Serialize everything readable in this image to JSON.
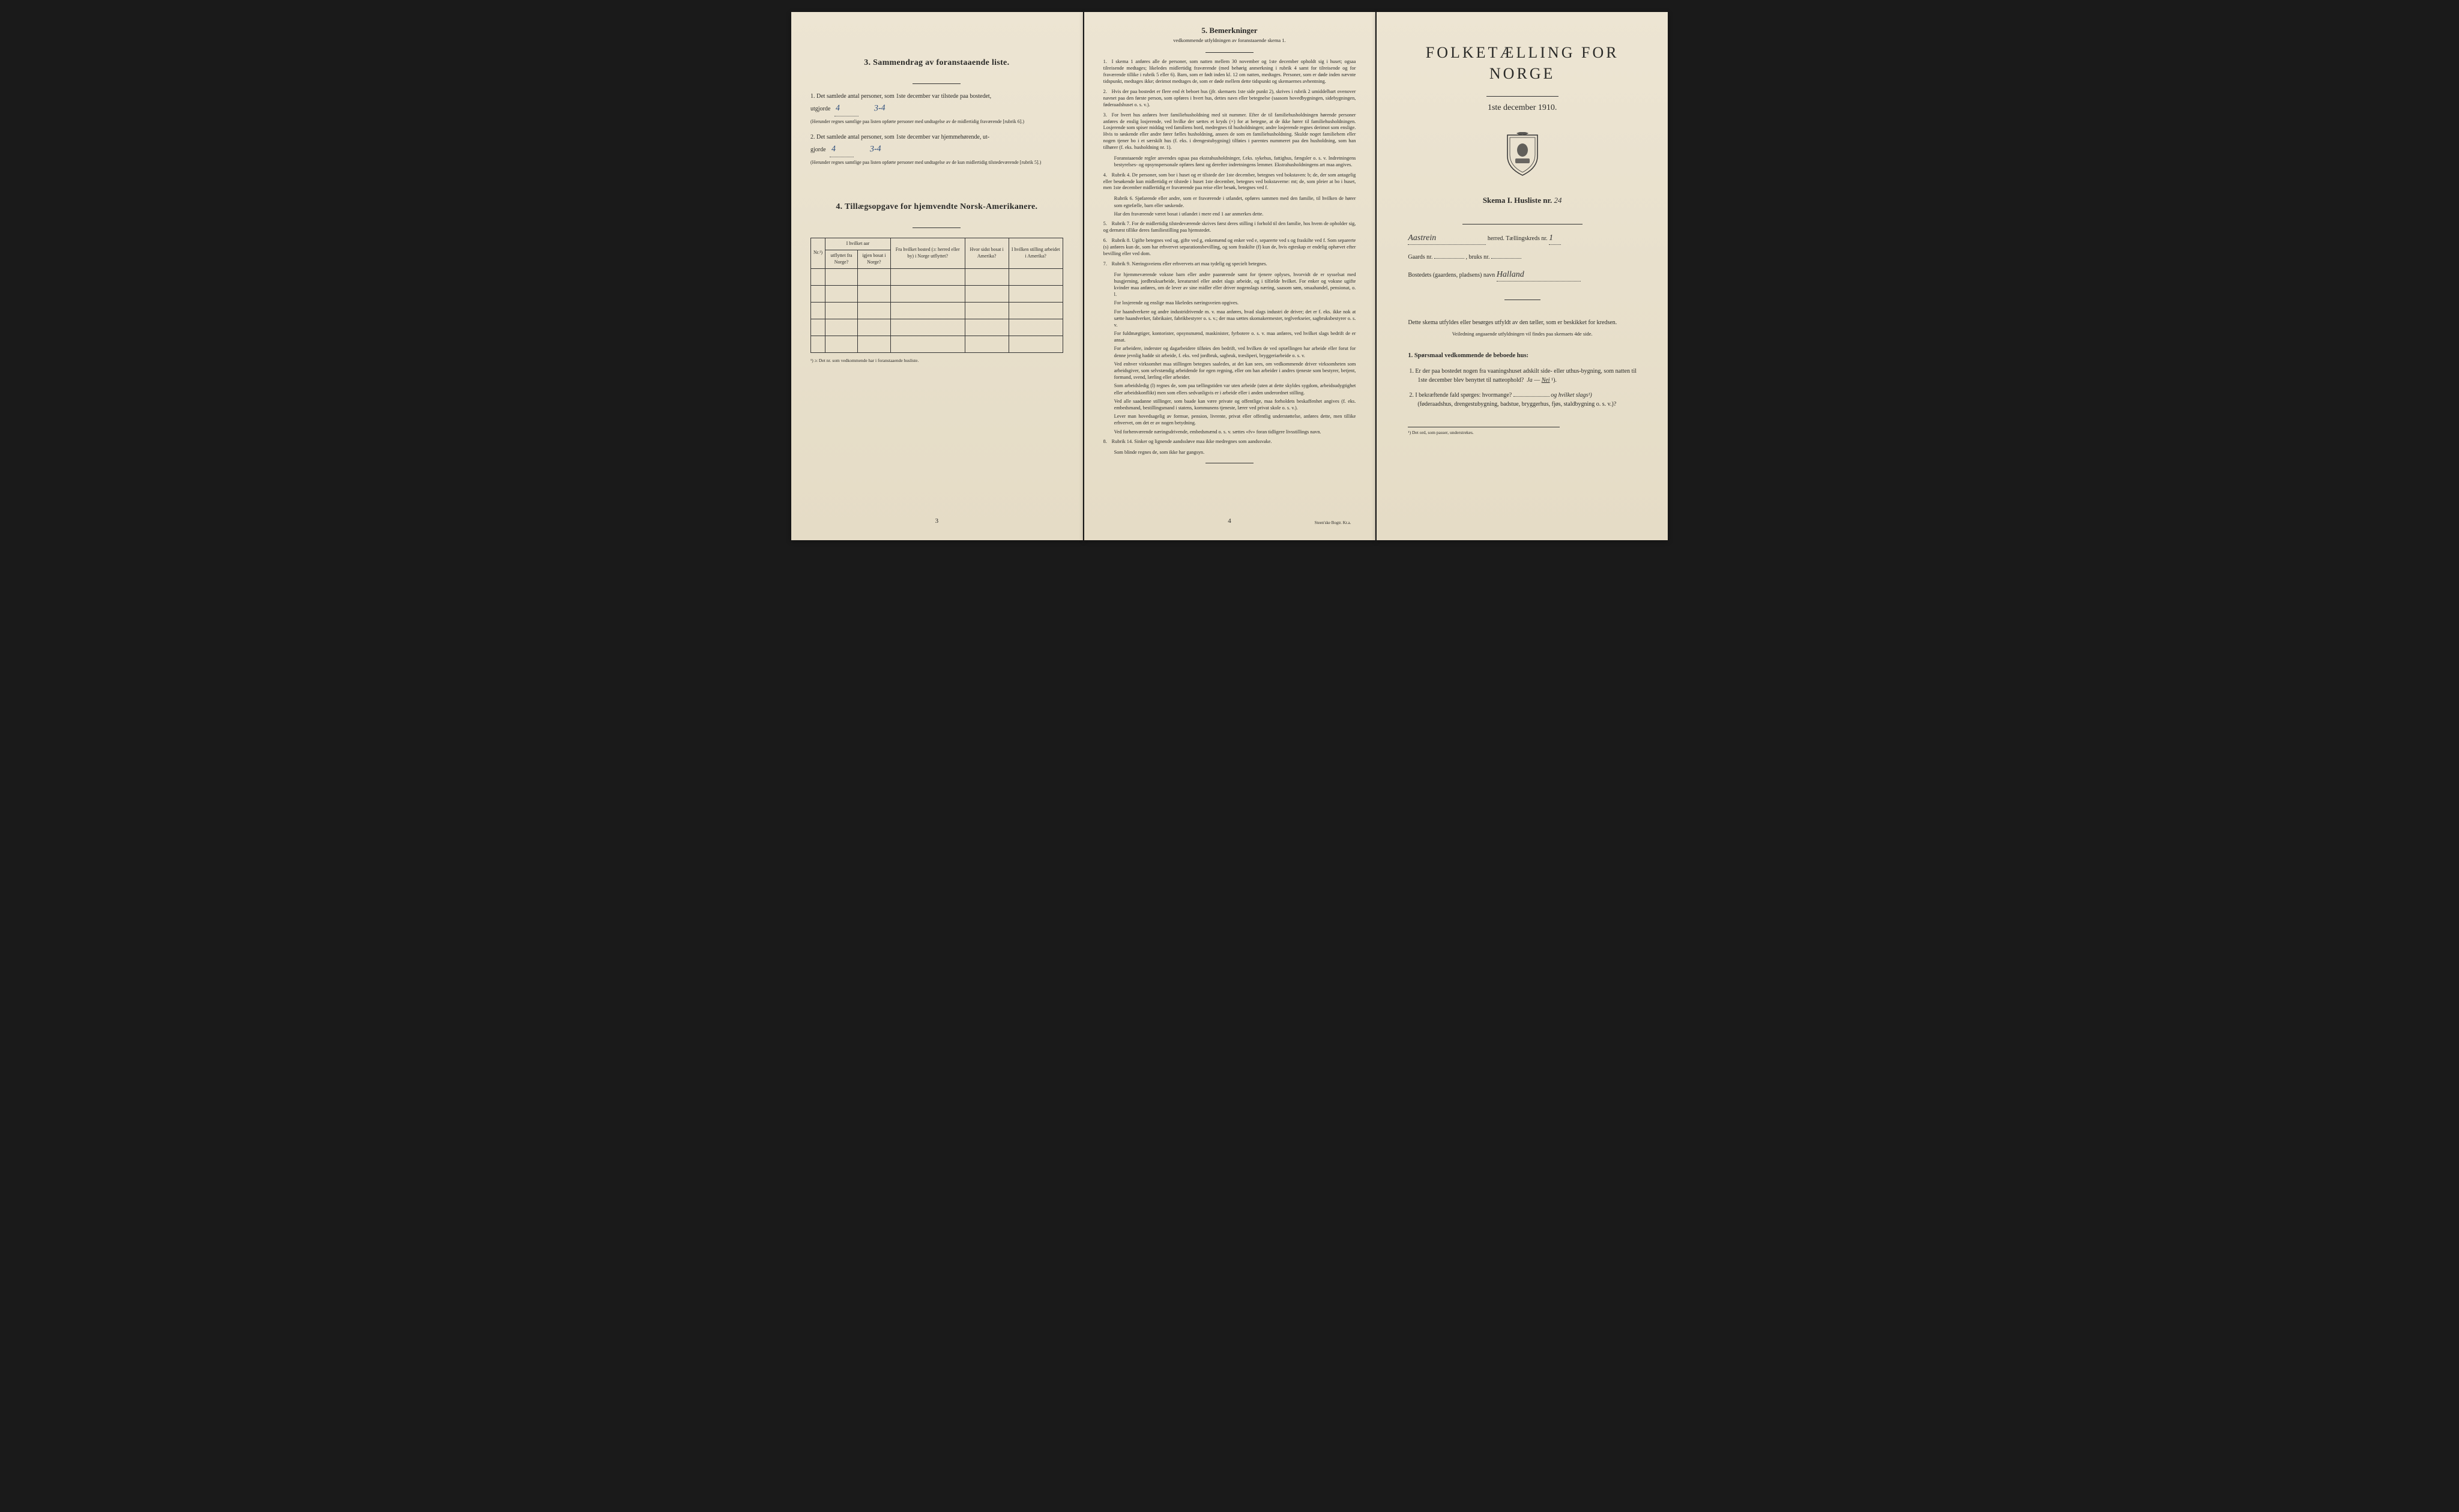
{
  "colors": {
    "paper_bg": "#ede5d3",
    "text": "#2a2a28",
    "handwriting_blue": "#2a4a7a",
    "border": "#333333"
  },
  "page1": {
    "section3_title": "3.  Sammendrag av foranstaaende liste.",
    "item1_text": "Det samlede antal personer, som 1ste december var tilstede paa bostedet,",
    "item1_prefix": "1.",
    "item1_utgjorde": "utgjorde",
    "item1_hw1": "4",
    "item1_hw2": "3-4",
    "item1_note": "(Herunder regnes samtlige paa listen opførte personer med undtagelse av de midlertidig fraværende [rubrik 6].)",
    "item2_prefix": "2.",
    "item2_text": "Det samlede antal personer, som 1ste december var hjemmehørende, ut-",
    "item2_gjorde": "gjorde",
    "item2_hw1": "4",
    "item2_hw2": "3-4",
    "item2_note": "(Herunder regnes samtlige paa listen opførte personer med undtagelse av de kun midlertidig tilstedeværende [rubrik 5].)",
    "section4_title": "4.  Tillægsopgave for hjemvendte Norsk-Amerikanere.",
    "table": {
      "col_nr": "Nr.¹)",
      "col_aar_head": "I hvilket aar",
      "col_utflyttet": "utflyttet fra Norge?",
      "col_igjen": "igjen bosat i Norge?",
      "col_bosted": "Fra hvilket bosted (ɔ: herred eller by) i Norge utflyttet?",
      "col_sidst": "Hvor sidst bosat i Amerika?",
      "col_stilling": "I hvilken stilling arbeidet i Amerika?",
      "empty_rows": 5
    },
    "footnote": "¹) ɔ: Det nr. som vedkommende har i foranstaaende husliste.",
    "page_num": "3"
  },
  "page2": {
    "title": "5.  Bemerkninger",
    "subtitle": "vedkommende utfyldningen av foranstaaende skema 1.",
    "items": [
      {
        "num": "1.",
        "text": "I skema 1 anføres alle de personer, som natten mellem 30 november og 1ste december opholdt sig i huset; ogsaa tilreisende medtages; likeledes midlertidig fraværende (med behørig anmerkning i rubrik 4 samt for tilreisende og for fraværende tillike i rubrik 5 eller 6). Barn, som er født inden kl. 12 om natten, medtages. Personer, som er døde inden nævnte tidspunkt, medtages ikke; derimot medtages de, som er døde mellem dette tidspunkt og skemaernes avhentning."
      },
      {
        "num": "2.",
        "text": "Hvis der paa bostedet er flere end ét beboet hus (jfr. skemaets 1ste side punkt 2), skrives i rubrik 2 umiddelbart ovenover navnet paa den første person, som opføres i hvert hus, dettes navn eller betegnelse (saasom hovedbygningen, sidebygningen, føderaadshuset o. s. v.)."
      },
      {
        "num": "3.",
        "text": "For hvert hus anføres hver familiehusholdning med sit nummer. Efter de til familiehusholdningen hørende personer anføres de enslig losjerende, ved hvilke der sættes et kryds (×) for at betegne, at de ikke hører til familiehusholdningen. Losjerende som spiser middag ved familiens bord, medregnes til husholdningen; andre losjerende regnes derimot som enslige. Hvis to søskende eller andre fører fælles husholdning, ansees de som en familiehusholdning. Skulde noget familiehem eller nogen tjener bo i et særskilt hus (f. eks. i drengestubygning) tilføies i parentes nummeret paa den husholdning, som han tilhører (f. eks. husholdning nr. 1).",
        "sub": "Foranstaaende regler anvendes ogsaa paa ekstrahusholdninger, f.eks. sykehus, fattighus, fængsler o. s. v. Indretningens bestyrelses- og opsynspersonale opføres først og derefter indretningens lemmer. Ekstrahusholdningens art maa angives."
      },
      {
        "num": "4.",
        "text": "Rubrik 4. De personer, som bor i huset og er tilstede der 1ste december, betegnes ved bokstaven: b; de, der som antagelig eller besøkende kun midlertidig er tilstede i huset 1ste december, betegnes ved bokstaverne: mt; de, som pleier at bo i huset, men 1ste december midlertidig er fraværende paa reise eller besøk, betegnes ved f.",
        "subs": [
          "Rubrik 6. Sjøfarende eller andre, som er fraværende i utlandet, opføres sammen med den familie, til hvilken de hører som egtefælle, barn eller søskende.",
          "Har den fraværende været bosat i utlandet i mere end 1 aar anmerkes dette."
        ]
      },
      {
        "num": "5.",
        "text": "Rubrik 7. For de midlertidig tilstedeværende skrives først deres stilling i forhold til den familie, hos hvem de opholder sig, og dernæst tillike deres familiestilling paa hjemstedet."
      },
      {
        "num": "6.",
        "text": "Rubrik 8. Ugifte betegnes ved ug, gifte ved g, enkemænd og enker ved e, separerte ved s og fraskilte ved f. Som separerte (s) anføres kun de, som har erhvervet separationsbevilling, og som fraskilte (f) kun de, hvis egteskap er endelig ophævet efter bevilling eller ved dom."
      },
      {
        "num": "7.",
        "text": "Rubrik 9. Næringsveiens eller erhvervets art maa tydelig og specielt betegnes.",
        "paras": [
          "For hjemmeværende voksne barn eller andre paarørende samt for tjenere oplyses, hvorvidt de er sysselsat med husgjerning, jordbruksarbeide, kreaturstel eller andet slags arbeide, og i tilfælde hvilket. For enker og voksne ugifte kvinder maa anføres, om de lever av sine midler eller driver nogenslags næring, saasom søm, smaahandel, pensionat, o. l.",
          "For losjerende og enslige maa likeledes næringsveien opgives.",
          "For haandverkere og andre industridrivende m. v. maa anføres, hvad slags industri de driver; det er f. eks. ikke nok at sætte haandverker, fabrikaier, fabrikbestyrer o. s. v.; der maa sættes skomakermester, teglverkseier, sagbruksbestyrer o. s. v.",
          "For fuldmægtiger, kontorister, opsynsmænd, maskinister, fyrbotere o. s. v. maa anføres, ved hvilket slags bedrift de er ansat.",
          "For arbeidere, inderster og dagarbeidere tilføies den bedrift, ved hvilken de ved optællingen har arbeide eller forut for denne jevnlig hadde sit arbeide, f. eks. ved jordbruk, sagbruk, træsliperi, bryggeriarbeide o. s. v.",
          "Ved enhver virksomhet maa stillingen betegnes saaledes, at det kan sees, om vedkommende driver virksomheten som arbeidsgiver, som selvstændig arbeidende for egen regning, eller om han arbeider i andres tjeneste som bestyrer, betjent, formand, svend, lærling eller arbeider.",
          "Som arbeidsledig (l) regnes de, som paa tællingstiden var uten arbeide (uten at dette skyldes sygdom, arbeidsudygtighet eller arbeidskonflikt) men som ellers sedvanligvis er i arbeide eller i anden underordnet stilling.",
          "Ved alle saadanne stillinger, som baade kan være private og offentlige, maa forholdets beskaffenhet angives (f. eks. embedsmand, bestillingsmand i statens, kommunens tjeneste, lærer ved privat skole o. s. v.).",
          "Lever man hovedsagelig av formue, pension, livrente, privat eller offentlig understøttelse, anføres dette, men tillike erhvervet, om det er av nogen betydning.",
          "Ved forhenværende næringsdrivende, embedsmænd o. s. v. sættes «fv» foran tidligere livsstillings navn."
        ]
      },
      {
        "num": "8.",
        "text": "Rubrik 14. Sinker og lignende aandssløve maa ikke medregnes som aandssvake.",
        "sub": "Som blinde regnes de, som ikke har gangsyn."
      }
    ],
    "page_num": "4",
    "printer": "Steen'ske Bogtr. Kr.a."
  },
  "page3": {
    "main_title": "FOLKETÆLLING FOR NORGE",
    "subtitle": "1ste december 1910.",
    "skema": "Skema I.  Husliste nr.",
    "skema_hw": "24",
    "herred_hw": "Aastrein",
    "herred_label": "herred.  Tællingskreds nr.",
    "kreds_hw": "1",
    "gaards": "Gaards nr.",
    "bruks": ", bruks nr.",
    "bosted_label": "Bostedets (gaardens, pladsens) navn",
    "bosted_hw": "Halland",
    "body_text": "Dette skema utfyldes eller besørges utfyldt av den tæller, som er beskikket for kredsen.",
    "body_note": "Veiledning angaaende utfyldningen vil findes paa skemaets 4de side.",
    "q_head": "1. Spørsmaal vedkommende de beboede hus:",
    "q1": "1. Er der paa bostedet nogen fra vaaningshuset adskilt side- eller uthus-bygning, som natten til 1ste december blev benyttet til natteophold?",
    "q1_ja": "Ja",
    "q1_nei": "Nei",
    "q1_sup": "¹).",
    "q2": "2. I bekræftende fald spørges: hvormange?",
    "q2_og": "og hvilket slags¹)",
    "q2_tail": "(føderaadshus, drengestubygning, badstue, bryggerhus, fjøs, staldbygning o. s. v.)?",
    "footnote": "¹) Det ord, som passer, understrekes."
  }
}
